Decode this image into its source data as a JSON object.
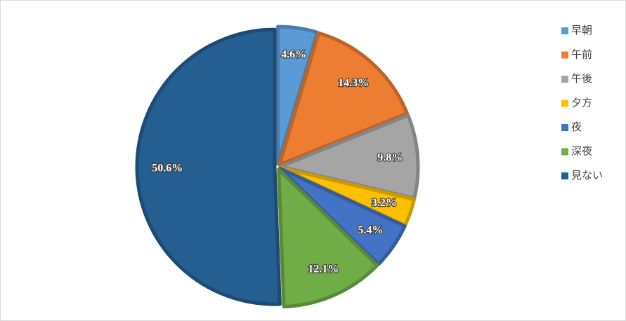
{
  "chart_data": {
    "type": "pie",
    "categories": [
      "早朝",
      "午前",
      "午後",
      "夕方",
      "夜",
      "深夜",
      "見ない"
    ],
    "values": [
      4.6,
      14.3,
      9.8,
      3.2,
      5.4,
      12.1,
      50.6
    ],
    "value_labels": [
      "4.6%",
      "14.3%",
      "9.8%",
      "3.2%",
      "5.4%",
      "12.1%",
      "50.6%"
    ],
    "colors": [
      "#5b9bd5",
      "#ed7d31",
      "#a5a5a5",
      "#ffc000",
      "#4472c4",
      "#70ad47",
      "#255e91"
    ],
    "legend": "right"
  }
}
